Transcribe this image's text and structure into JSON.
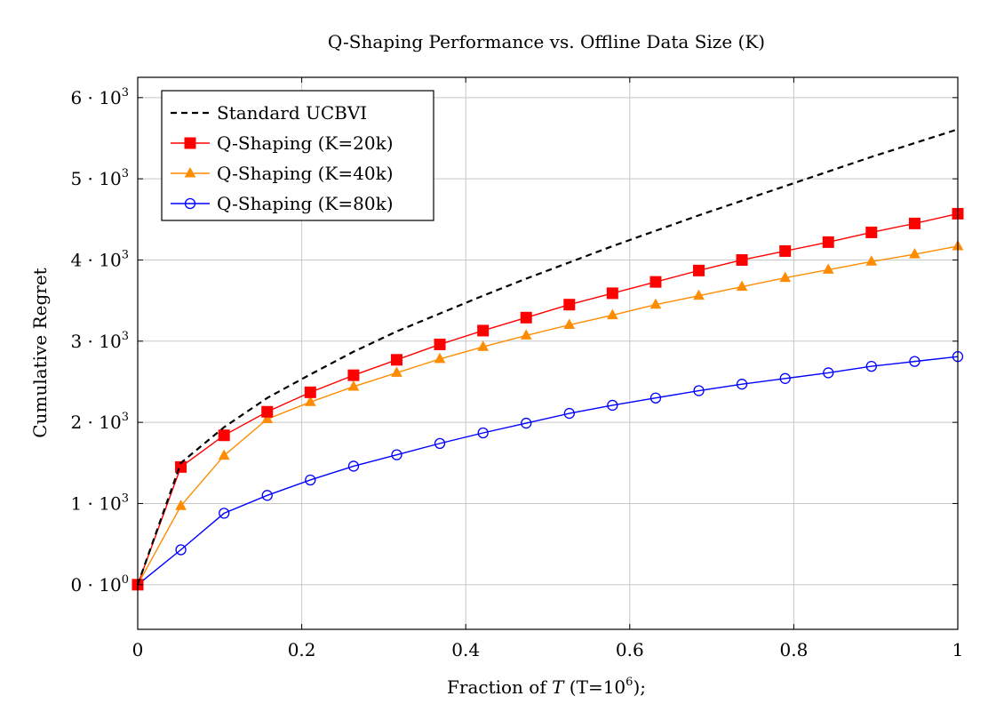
{
  "chart_data": {
    "type": "line",
    "title": "Q-Shaping Performance vs. Offline Data Size (K)",
    "xlabel": {
      "prefix": "Fraction of ",
      "var": "T",
      "paren_open": " (T=10",
      "sup": "6",
      "paren_close": ");"
    },
    "ylabel": "Cumulative Regret",
    "xlim": [
      0,
      1
    ],
    "ylim": [
      -550,
      6250
    ],
    "grid": true,
    "legend_position": "top-left",
    "x_ticks": [
      {
        "value": 0,
        "label": "0"
      },
      {
        "value": 0.2,
        "label": "0.2"
      },
      {
        "value": 0.4,
        "label": "0.4"
      },
      {
        "value": 0.6,
        "label": "0.6"
      },
      {
        "value": 0.8,
        "label": "0.8"
      },
      {
        "value": 1,
        "label": "1"
      }
    ],
    "y_ticks": [
      {
        "value": 0,
        "base": "0 · 10",
        "exp": "0"
      },
      {
        "value": 1000,
        "base": "1 · 10",
        "exp": "3"
      },
      {
        "value": 2000,
        "base": "2 · 10",
        "exp": "3"
      },
      {
        "value": 3000,
        "base": "3 · 10",
        "exp": "3"
      },
      {
        "value": 4000,
        "base": "4 · 10",
        "exp": "3"
      },
      {
        "value": 5000,
        "base": "5 · 10",
        "exp": "3"
      },
      {
        "value": 6000,
        "base": "6 · 10",
        "exp": "3"
      }
    ],
    "series": [
      {
        "name": "Standard UCBVI",
        "color": "#000000",
        "style": "dashed",
        "marker": "none",
        "x": [
          0,
          0.0526,
          0.1053,
          0.1579,
          0.2105,
          0.2632,
          0.3158,
          0.3684,
          0.4211,
          0.4737,
          0.5263,
          0.5789,
          0.6316,
          0.6842,
          0.7368,
          0.7895,
          0.8421,
          0.8947,
          0.9474,
          1.0
        ],
        "y": [
          0,
          1500,
          1940,
          2300,
          2590,
          2870,
          3120,
          3340,
          3560,
          3770,
          3970,
          4170,
          4360,
          4550,
          4730,
          4910,
          5090,
          5270,
          5440,
          5610
        ]
      },
      {
        "name": "Q-Shaping (K=20k)",
        "color": "#ff0000",
        "style": "solid",
        "marker": "square",
        "x": [
          0,
          0.0526,
          0.1053,
          0.1579,
          0.2105,
          0.2632,
          0.3158,
          0.3684,
          0.4211,
          0.4737,
          0.5263,
          0.5789,
          0.6316,
          0.6842,
          0.7368,
          0.7895,
          0.8421,
          0.8947,
          0.9474,
          1.0
        ],
        "y": [
          0,
          1450,
          1840,
          2130,
          2370,
          2580,
          2770,
          2960,
          3130,
          3290,
          3450,
          3590,
          3730,
          3870,
          4000,
          4110,
          4220,
          4340,
          4450,
          4570
        ]
      },
      {
        "name": "Q-Shaping (K=40k)",
        "color": "#ff8c00",
        "style": "solid",
        "marker": "triangle",
        "x": [
          0,
          0.0526,
          0.1053,
          0.1579,
          0.2105,
          0.2632,
          0.3158,
          0.3684,
          0.4211,
          0.4737,
          0.5263,
          0.5789,
          0.6316,
          0.6842,
          0.7368,
          0.7895,
          0.8421,
          0.8947,
          0.9474,
          1.0
        ],
        "y": [
          0,
          970,
          1590,
          2040,
          2250,
          2440,
          2610,
          2780,
          2930,
          3070,
          3200,
          3320,
          3450,
          3560,
          3670,
          3780,
          3880,
          3980,
          4070,
          4170
        ]
      },
      {
        "name": "Q-Shaping (K=80k)",
        "color": "#0000ff",
        "style": "solid",
        "marker": "circle",
        "x": [
          0,
          0.0526,
          0.1053,
          0.1579,
          0.2105,
          0.2632,
          0.3158,
          0.3684,
          0.4211,
          0.4737,
          0.5263,
          0.5789,
          0.6316,
          0.6842,
          0.7368,
          0.7895,
          0.8421,
          0.8947,
          0.9474,
          1.0
        ],
        "y": [
          0,
          430,
          880,
          1100,
          1290,
          1460,
          1600,
          1740,
          1870,
          1990,
          2110,
          2210,
          2300,
          2390,
          2470,
          2540,
          2610,
          2690,
          2750,
          2810
        ]
      }
    ]
  }
}
